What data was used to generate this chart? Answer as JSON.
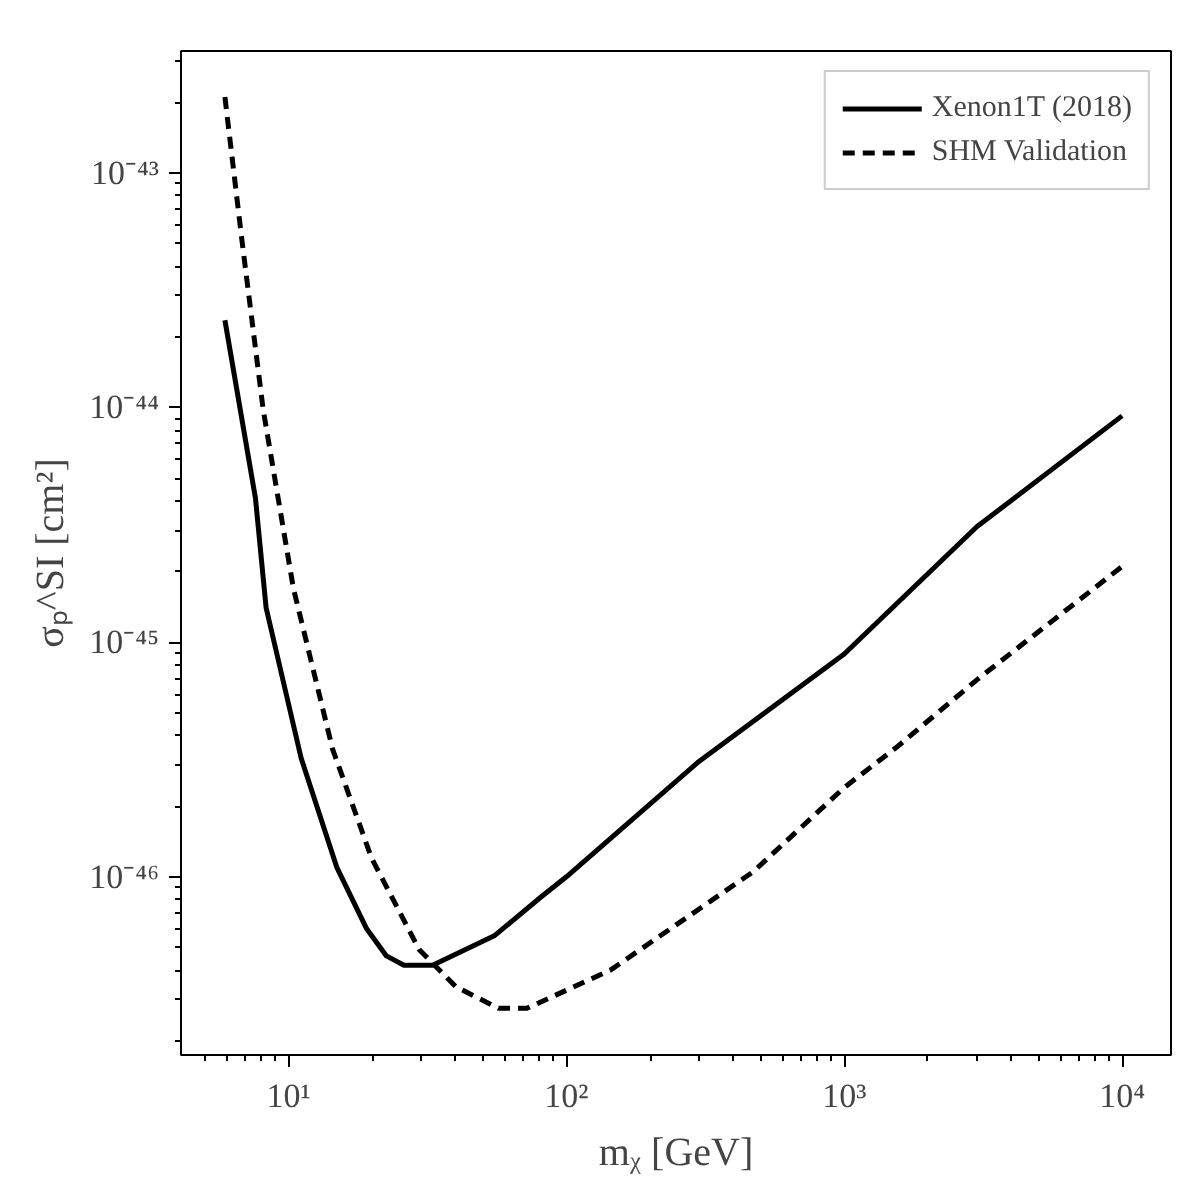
{
  "chart_data": {
    "type": "line",
    "xlabel": "mᵪ [GeV]",
    "ylabel": "σₚ^SI [cm²]",
    "log": "xy",
    "grid": false,
    "legend": "top right",
    "xlim": [
      4.1,
      15000
    ],
    "ylim": [
      1.74e-47,
      3.3e-43
    ],
    "xticks": [
      {
        "value": 10,
        "label": "10¹"
      },
      {
        "value": 100,
        "label": "10²"
      },
      {
        "value": 1000,
        "label": "10³"
      },
      {
        "value": 10000,
        "label": "10⁴"
      }
    ],
    "yticks": [
      {
        "value": 1e-46,
        "label": "10⁻⁴⁶"
      },
      {
        "value": 1e-45,
        "label": "10⁻⁴⁵"
      },
      {
        "value": 1e-44,
        "label": "10⁻⁴⁴"
      },
      {
        "value": 1e-43,
        "label": "10⁻⁴³"
      }
    ],
    "series": [
      {
        "name": "Xenon1T (2018)",
        "color": "#000000",
        "line_style": "solid",
        "x": [
          5.9,
          7.6,
          8.3,
          11.1,
          14.9,
          19.1,
          22.5,
          26,
          33,
          55,
          81,
          100,
          300,
          1000,
          3000,
          10000
        ],
        "values": [
          2.35e-44,
          4.1e-45,
          1.4e-45,
          3.2e-46,
          1.1e-46,
          6e-47,
          4.6e-47,
          4.2e-47,
          4.2e-47,
          5.6e-47,
          8.2e-47,
          1e-46,
          3.1e-46,
          8.9e-46,
          3.1e-45,
          9.2e-45
        ]
      },
      {
        "name": "SHM Validation",
        "color": "#000000",
        "line_style": "dashed",
        "x": [
          5.9,
          6.8,
          8.1,
          10.4,
          14.4,
          19.9,
          29.5,
          40,
          57,
          72,
          144,
          470,
          1000,
          1560,
          3000,
          10000
        ],
        "values": [
          2.1e-43,
          5.1e-44,
          9.8e-45,
          1.7e-45,
          3.5e-46,
          1.2e-46,
          4.9e-47,
          3.4e-47,
          2.75e-47,
          2.75e-47,
          4e-47,
          1.05e-46,
          2.4e-46,
          3.6e-46,
          6.9e-46,
          2.1e-45
        ]
      }
    ]
  }
}
